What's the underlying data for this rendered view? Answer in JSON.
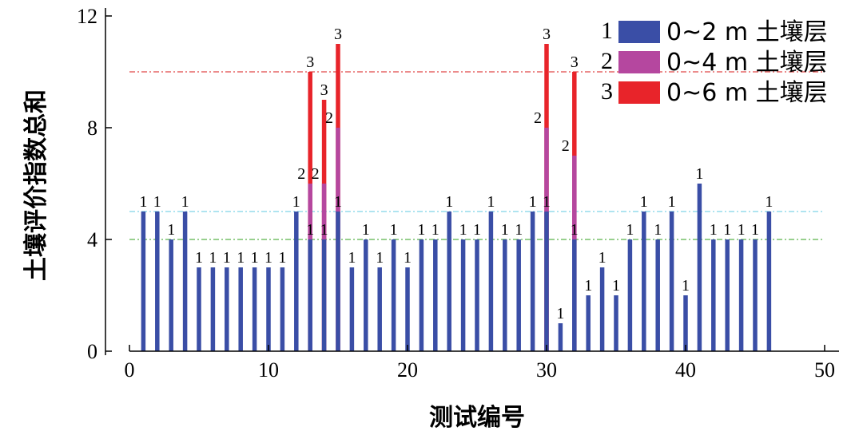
{
  "chart_data": {
    "type": "bar",
    "xlabel": "测试编号",
    "ylabel": "土壤评价指数总和",
    "xlim": [
      0,
      50
    ],
    "ylim": [
      0,
      12
    ],
    "x_ticks": [
      "0",
      "10",
      "20",
      "30",
      "40",
      "50"
    ],
    "y_ticks": [
      "0",
      "4",
      "8",
      "12"
    ],
    "legend_position": "top-right",
    "series": [
      {
        "name": "0~2 m 土壤层",
        "legend_number": "1",
        "color": "#3a4ea6",
        "points": [
          [
            1,
            5
          ],
          [
            2,
            5
          ],
          [
            3,
            4
          ],
          [
            4,
            5
          ],
          [
            5,
            3
          ],
          [
            6,
            3
          ],
          [
            7,
            3
          ],
          [
            8,
            3
          ],
          [
            9,
            3
          ],
          [
            10,
            3
          ],
          [
            11,
            3
          ],
          [
            12,
            5
          ],
          [
            13,
            4
          ],
          [
            14,
            4
          ],
          [
            15,
            5
          ],
          [
            16,
            3
          ],
          [
            17,
            4
          ],
          [
            18,
            3
          ],
          [
            19,
            4
          ],
          [
            20,
            3
          ],
          [
            21,
            4
          ],
          [
            22,
            4
          ],
          [
            23,
            5
          ],
          [
            24,
            4
          ],
          [
            25,
            4
          ],
          [
            26,
            5
          ],
          [
            27,
            4
          ],
          [
            28,
            4
          ],
          [
            29,
            5
          ],
          [
            30,
            5
          ],
          [
            31,
            1
          ],
          [
            32,
            4
          ],
          [
            33,
            2
          ],
          [
            34,
            3
          ],
          [
            35,
            2
          ],
          [
            36,
            4
          ],
          [
            37,
            5
          ],
          [
            38,
            4
          ],
          [
            39,
            5
          ],
          [
            40,
            2
          ],
          [
            41,
            6
          ],
          [
            42,
            4
          ],
          [
            43,
            4
          ],
          [
            44,
            4
          ],
          [
            45,
            4
          ],
          [
            46,
            5
          ]
        ]
      },
      {
        "name": "0~4 m 土壤层",
        "legend_number": "2",
        "color": "#b5479f",
        "points": [
          [
            13,
            6
          ],
          [
            14,
            6
          ],
          [
            15,
            8
          ],
          [
            30,
            8
          ],
          [
            32,
            7
          ]
        ]
      },
      {
        "name": "0~6 m 土壤层",
        "legend_number": "3",
        "color": "#e8242a",
        "points": [
          [
            13,
            10
          ],
          [
            14,
            9
          ],
          [
            15,
            11
          ],
          [
            30,
            11
          ],
          [
            32,
            10
          ]
        ]
      }
    ],
    "reference_lines": [
      {
        "y": 10,
        "color": "#e04848"
      },
      {
        "y": 5,
        "color": "#7fd4e8"
      },
      {
        "y": 4,
        "color": "#5bb44a"
      }
    ]
  }
}
